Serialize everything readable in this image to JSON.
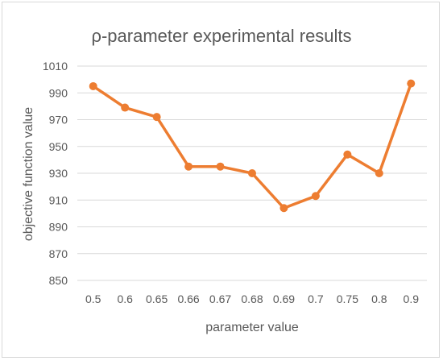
{
  "chart_data": {
    "type": "line",
    "title": "ρ-parameter experimental results",
    "xlabel": "parameter value",
    "ylabel": "objective function value",
    "categories": [
      "0.5",
      "0.6",
      "0.65",
      "0.66",
      "0.67",
      "0.68",
      "0.69",
      "0.7",
      "0.75",
      "0.8",
      "0.9"
    ],
    "series": [
      {
        "values": [
          995,
          979,
          972,
          935,
          935,
          930,
          904,
          913,
          944,
          930,
          997
        ],
        "color": "#ED7D31"
      }
    ],
    "ylim": [
      850,
      1010
    ],
    "yticks": [
      850,
      870,
      890,
      910,
      930,
      950,
      970,
      990,
      1010
    ],
    "grid": true,
    "legend": "none",
    "markers": true
  }
}
